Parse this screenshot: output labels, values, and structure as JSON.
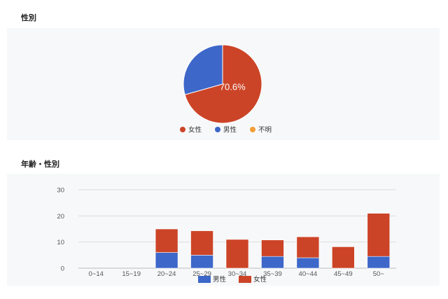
{
  "sections": {
    "gender_title": "性別",
    "age_gender_title": "年齢・性別"
  },
  "chart_data": [
    {
      "type": "pie",
      "title": "性別",
      "slices": [
        {
          "name": "女性",
          "value": 70.6,
          "color": "#cc4427",
          "label": "70.6%"
        },
        {
          "name": "男性",
          "value": 29.4,
          "color": "#3d67c9",
          "label": ""
        },
        {
          "name": "不明",
          "value": 0,
          "color": "#f29d38",
          "label": ""
        }
      ],
      "legend": [
        "女性",
        "男性",
        "不明"
      ],
      "legend_position": "bottom"
    },
    {
      "type": "bar",
      "stacked": true,
      "title": "年齢・性別",
      "categories": [
        "0~14",
        "15~19",
        "20~24",
        "25~29",
        "30~34",
        "35~39",
        "40~44",
        "45~49",
        "50~"
      ],
      "series": [
        {
          "name": "男性",
          "color": "#3d67c9",
          "values": [
            0,
            0,
            6,
            5,
            0,
            4.5,
            4,
            0,
            4.5
          ]
        },
        {
          "name": "女性",
          "color": "#cc4427",
          "values": [
            0,
            0,
            9,
            9.3,
            11,
            6.3,
            8,
            8.2,
            16.5
          ]
        }
      ],
      "yticks": [
        0,
        10,
        20,
        30
      ],
      "ylim": [
        0,
        30
      ],
      "grid": true,
      "legend_position": "bottom"
    }
  ]
}
